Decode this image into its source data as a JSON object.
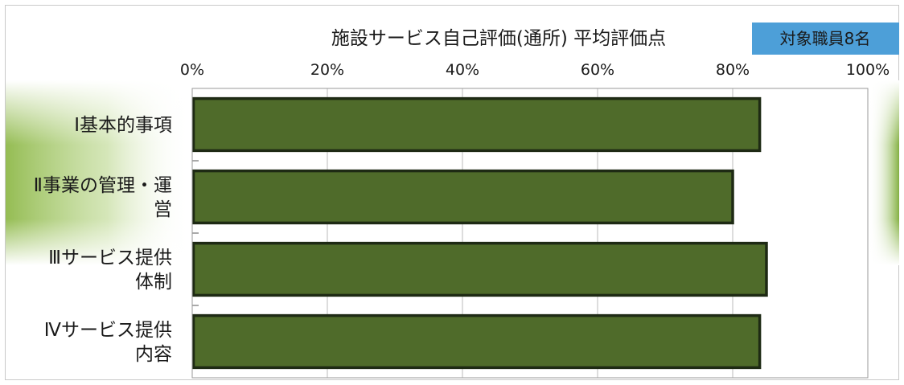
{
  "chart_data": {
    "type": "bar",
    "orientation": "horizontal",
    "title": "施設サービス自己評価(通所) 平均評価点",
    "badge": "対象職員8名",
    "categories": [
      [
        "Ⅰ基本的事項"
      ],
      [
        "Ⅱ事業の管理・運",
        "営"
      ],
      [
        "Ⅲサービス提供",
        "体制"
      ],
      [
        "Ⅳサービス提供",
        "内容"
      ]
    ],
    "values": [
      84,
      80,
      85,
      84
    ],
    "xlim": [
      0,
      100
    ],
    "ticks": [
      0,
      20,
      40,
      60,
      80,
      100
    ],
    "tick_labels": [
      "0%",
      "20%",
      "40%",
      "60%",
      "80%",
      "100%"
    ],
    "grid": true,
    "colors": {
      "bar_fill": "#4f6b2a",
      "bar_edge": "#1e2a14",
      "badge_fill": "#4d9fd8",
      "band_green": "#8fb94a",
      "grid_line": "#bbbbbb"
    }
  }
}
